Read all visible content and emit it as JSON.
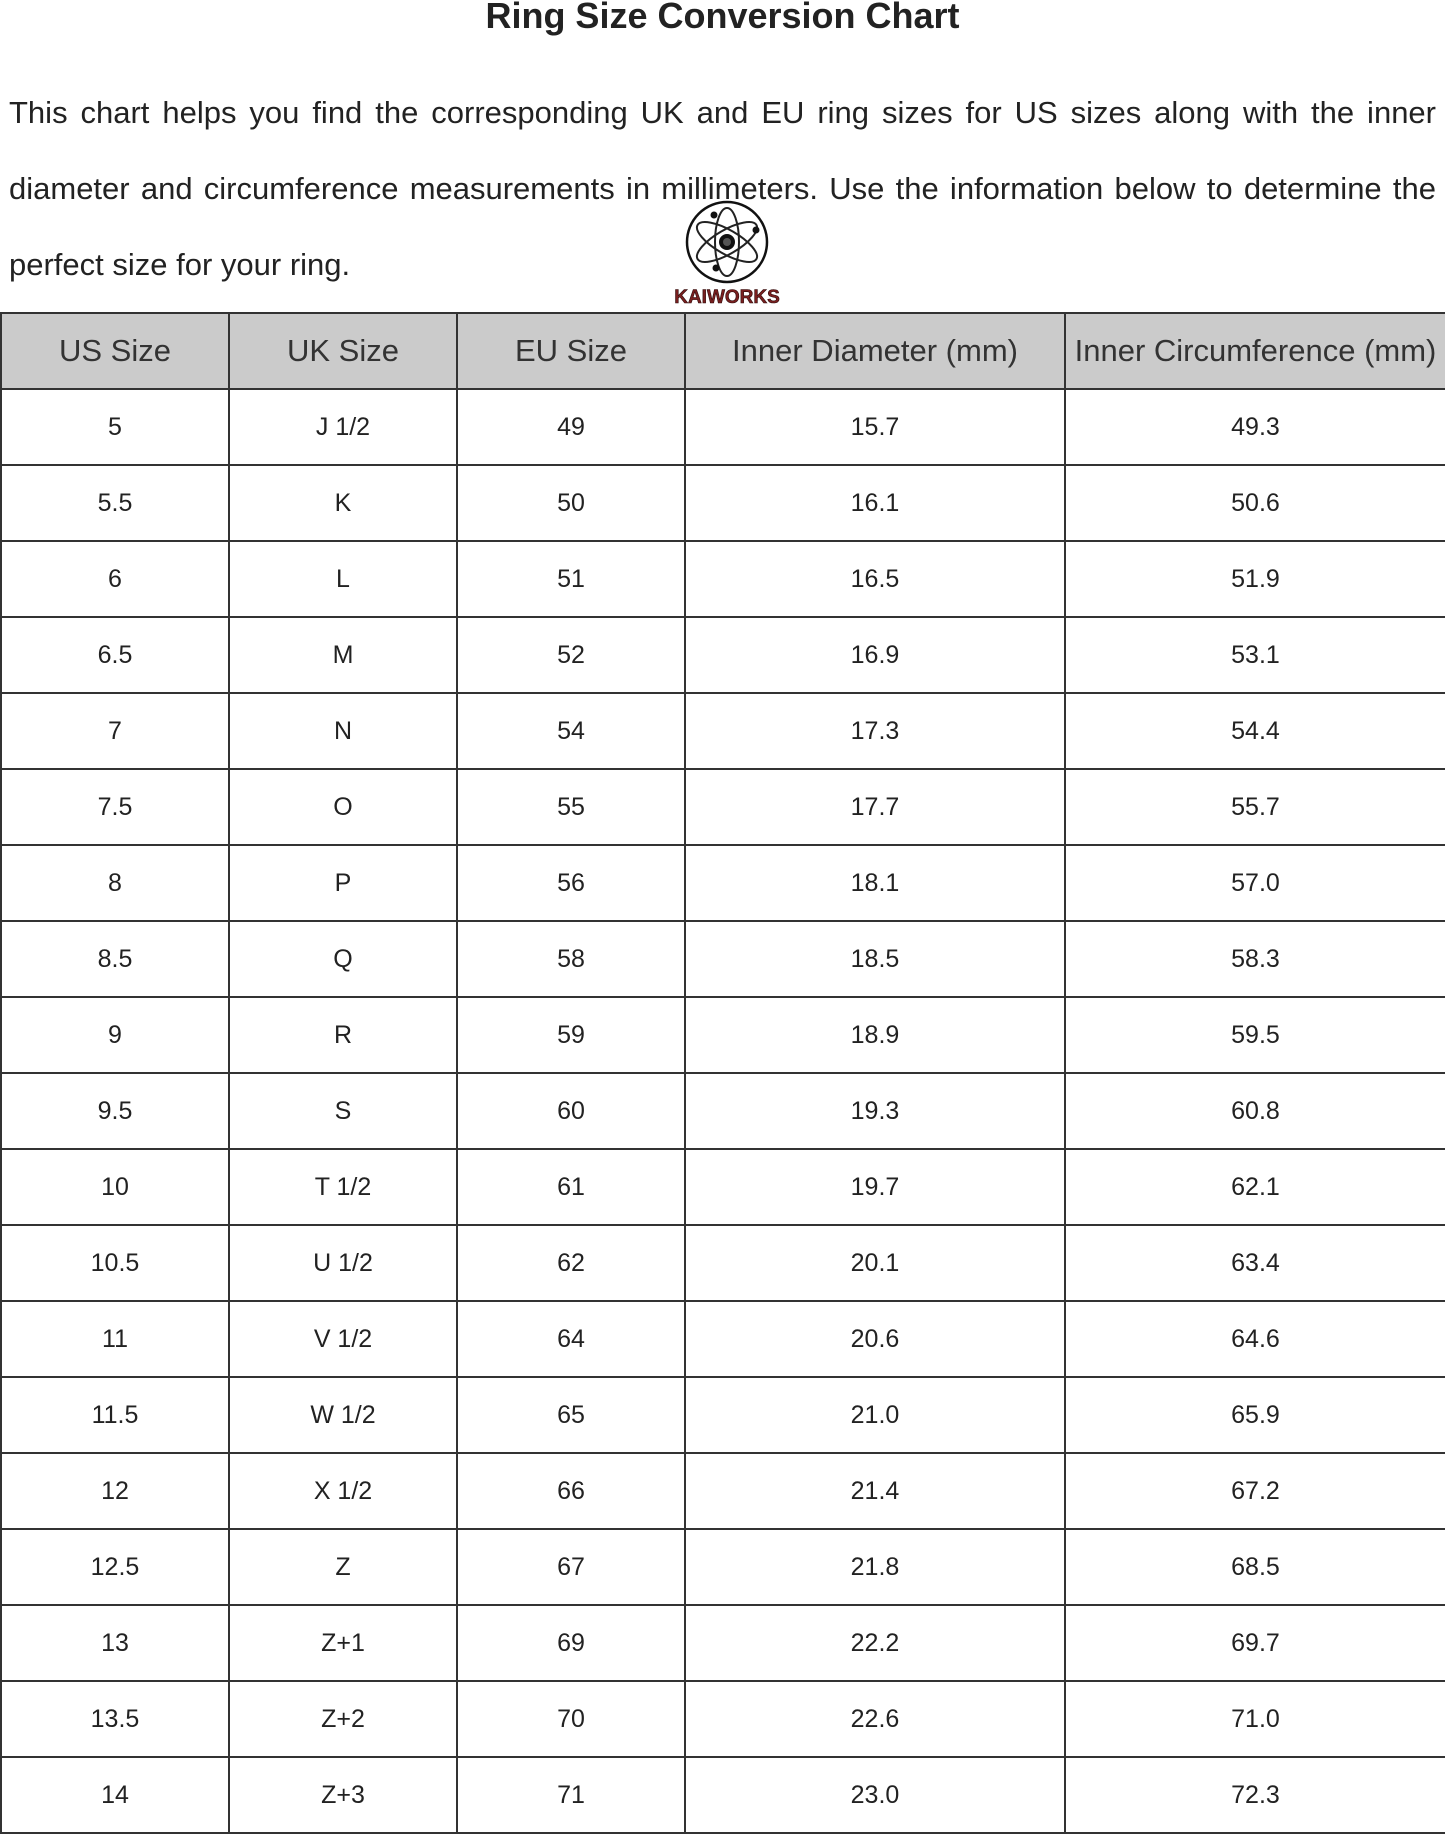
{
  "title": "Ring Size Conversion Chart",
  "intro": "This chart helps you find the corresponding UK and EU ring sizes for US sizes along with the inner diameter and circumference measurements in millimeters. Use the information below to determine the perfect size for your ring.",
  "logo": {
    "text": "KAIWORKS",
    "icon": "atom-icon",
    "color": "#7a1f1f"
  },
  "table": {
    "headers": [
      "US Size",
      "UK Size",
      "EU Size",
      "Inner Diameter (mm)",
      "Inner Circumference (mm)"
    ],
    "header_bg": "#cbcbcb",
    "rows": [
      [
        "5",
        "J 1/2",
        "49",
        "15.7",
        "49.3"
      ],
      [
        "5.5",
        "K",
        "50",
        "16.1",
        "50.6"
      ],
      [
        "6",
        "L",
        "51",
        "16.5",
        "51.9"
      ],
      [
        "6.5",
        "M",
        "52",
        "16.9",
        "53.1"
      ],
      [
        "7",
        "N",
        "54",
        "17.3",
        "54.4"
      ],
      [
        "7.5",
        "O",
        "55",
        "17.7",
        "55.7"
      ],
      [
        "8",
        "P",
        "56",
        "18.1",
        "57.0"
      ],
      [
        "8.5",
        "Q",
        "58",
        "18.5",
        "58.3"
      ],
      [
        "9",
        "R",
        "59",
        "18.9",
        "59.5"
      ],
      [
        "9.5",
        "S",
        "60",
        "19.3",
        "60.8"
      ],
      [
        "10",
        "T 1/2",
        "61",
        "19.7",
        "62.1"
      ],
      [
        "10.5",
        "U 1/2",
        "62",
        "20.1",
        "63.4"
      ],
      [
        "11",
        "V 1/2",
        "64",
        "20.6",
        "64.6"
      ],
      [
        "11.5",
        "W 1/2",
        "65",
        "21.0",
        "65.9"
      ],
      [
        "12",
        "X 1/2",
        "66",
        "21.4",
        "67.2"
      ],
      [
        "12.5",
        "Z",
        "67",
        "21.8",
        "68.5"
      ],
      [
        "13",
        "Z+1",
        "69",
        "22.2",
        "69.7"
      ],
      [
        "13.5",
        "Z+2",
        "70",
        "22.6",
        "71.0"
      ],
      [
        "14",
        "Z+3",
        "71",
        "23.0",
        "72.3"
      ]
    ]
  }
}
